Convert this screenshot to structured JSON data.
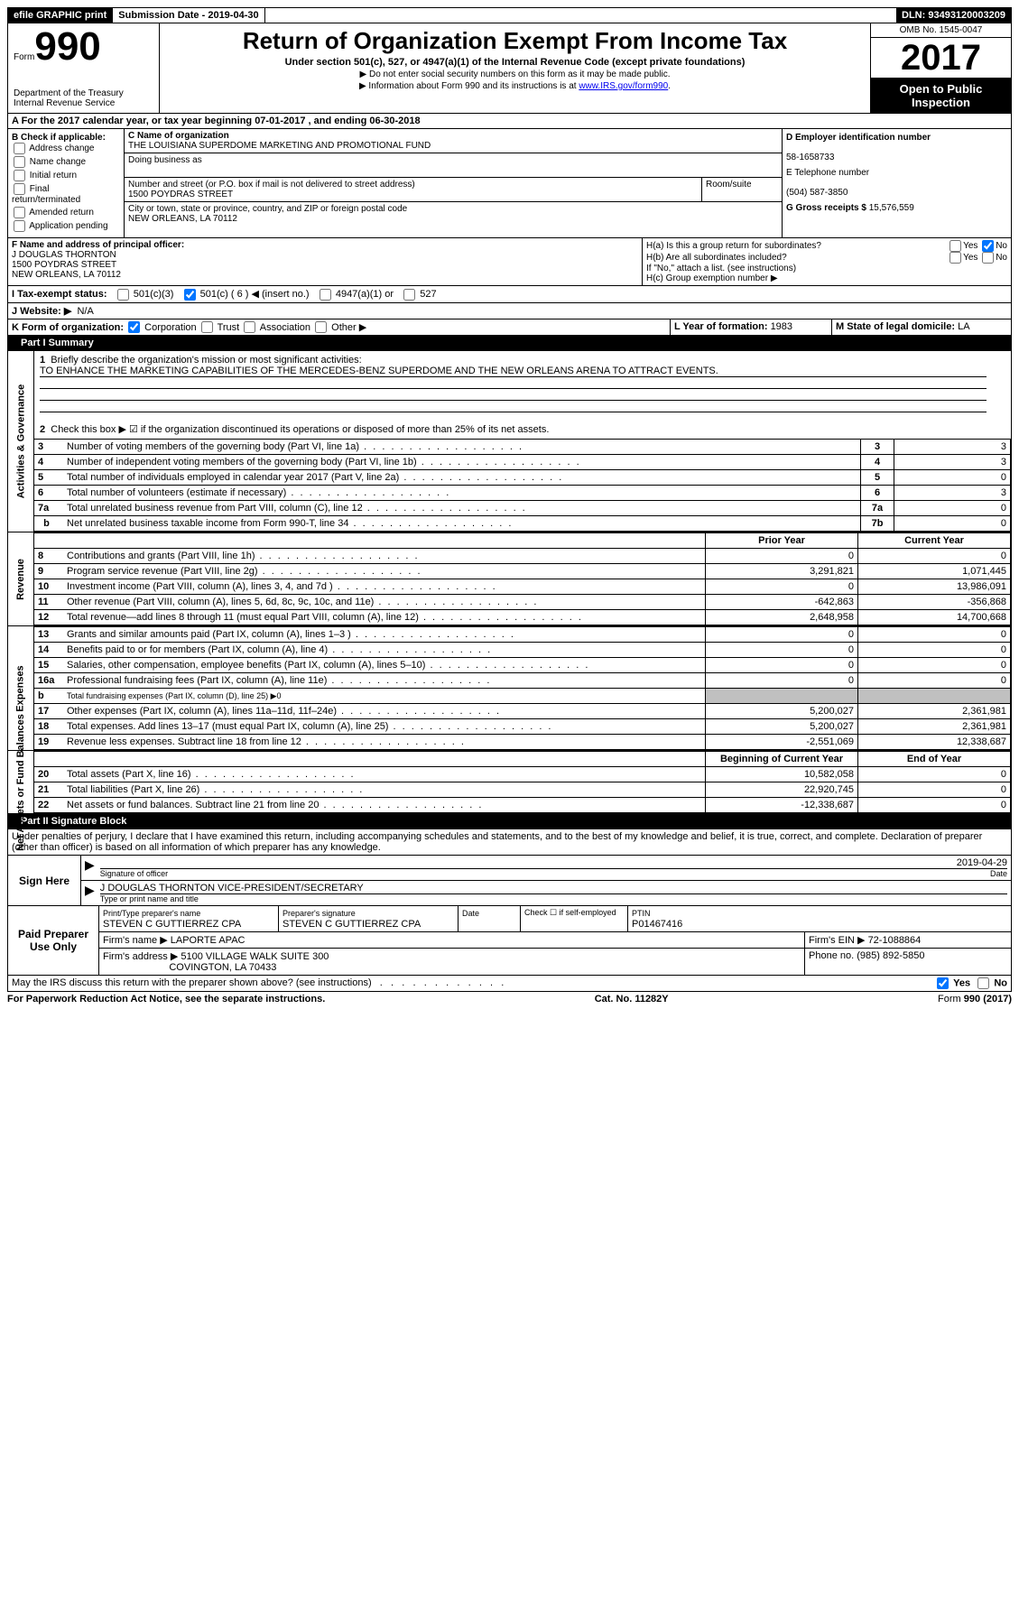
{
  "topbar": {
    "efile": "efile GRAPHIC print",
    "submission_label": "Submission Date - ",
    "submission_date": "2019-04-30",
    "dln_label": "DLN: ",
    "dln": "93493120003209"
  },
  "header": {
    "form_word": "Form",
    "form_num": "990",
    "dept1": "Department of the Treasury",
    "dept2": "Internal Revenue Service",
    "title": "Return of Organization Exempt From Income Tax",
    "subtitle": "Under section 501(c), 527, or 4947(a)(1) of the Internal Revenue Code (except private foundations)",
    "note1": "▶ Do not enter social security numbers on this form as it may be made public.",
    "note2_pre": "▶ Information about Form 990 and its instructions is at ",
    "note2_link": "www.IRS.gov/form990",
    "omb": "OMB No. 1545-0047",
    "year": "2017",
    "inspection": "Open to Public Inspection"
  },
  "a_line": "A   For the 2017 calendar year, or tax year beginning 07-01-2017   , and ending 06-30-2018",
  "b": {
    "heading": "B Check if applicable:",
    "opts": [
      "Address change",
      "Name change",
      "Initial return",
      "Final return/terminated",
      "Amended return",
      "Application pending"
    ]
  },
  "c": {
    "name_label": "C Name of organization",
    "name": "THE LOUISIANA SUPERDOME MARKETING AND PROMOTIONAL FUND",
    "dba_label": "Doing business as",
    "dba": "",
    "street_label": "Number and street (or P.O. box if mail is not delivered to street address)",
    "street": "1500 POYDRAS STREET",
    "room_label": "Room/suite",
    "city_label": "City or town, state or province, country, and ZIP or foreign postal code",
    "city": "NEW ORLEANS, LA   70112"
  },
  "d": {
    "ein_label": "D Employer identification number",
    "ein": "58-1658733",
    "tel_label": "E Telephone number",
    "tel": "(504) 587-3850",
    "gross_label": "G Gross receipts $ ",
    "gross": "15,576,559"
  },
  "f": {
    "label": "F  Name and address of principal officer:",
    "name": "J DOUGLAS THORNTON",
    "street": "1500 POYDRAS STREET",
    "city": "NEW ORLEANS, LA   70112"
  },
  "h": {
    "a_label": "H(a)  Is this a group return for subordinates?",
    "b_label": "H(b)  Are all subordinates included?",
    "b_note": "If \"No,\" attach a list. (see instructions)",
    "c_label": "H(c)  Group exemption number ▶",
    "yes": "Yes",
    "no": "No"
  },
  "i": {
    "label": "I   Tax-exempt status:",
    "o1": "501(c)(3)",
    "o2": "501(c) ( 6 ) ◀ (insert no.)",
    "o3": "4947(a)(1) or",
    "o4": "527"
  },
  "j": {
    "label": "J   Website: ▶",
    "val": "N/A"
  },
  "k": {
    "label": "K Form of organization:",
    "opts": [
      "Corporation",
      "Trust",
      "Association",
      "Other ▶"
    ]
  },
  "l": {
    "label": "L Year of formation: ",
    "val": "1983"
  },
  "m": {
    "label": "M State of legal domicile: ",
    "val": "LA"
  },
  "part1_header": "Part I     Summary",
  "part1": {
    "q1": "Briefly describe the organization's mission or most significant activities:",
    "q1_ans": "TO ENHANCE THE MARKETING CAPABILITIES OF THE MERCEDES-BENZ SUPERDOME AND THE NEW ORLEANS ARENA TO ATTRACT EVENTS.",
    "q2": "Check this box ▶ ☑ if the organization discontinued its operations or disposed of more than 25% of its net assets.",
    "lines_ag": [
      {
        "n": "3",
        "t": "Number of voting members of the governing body (Part VI, line 1a)",
        "v": "3"
      },
      {
        "n": "4",
        "t": "Number of independent voting members of the governing body (Part VI, line 1b)",
        "v": "3"
      },
      {
        "n": "5",
        "t": "Total number of individuals employed in calendar year 2017 (Part V, line 2a)",
        "v": "0"
      },
      {
        "n": "6",
        "t": "Total number of volunteers (estimate if necessary)",
        "v": "3"
      },
      {
        "n": "7a",
        "t": "Total unrelated business revenue from Part VIII, column (C), line 12",
        "v": "0"
      },
      {
        "n": "7b",
        "t": "Net unrelated business taxable income from Form 990-T, line 34",
        "sub": "b",
        "v": "0"
      }
    ],
    "year_hdr_prior": "Prior Year",
    "year_hdr_curr": "Current Year",
    "rev": [
      {
        "n": "8",
        "t": "Contributions and grants (Part VIII, line 1h)",
        "p": "0",
        "c": "0"
      },
      {
        "n": "9",
        "t": "Program service revenue (Part VIII, line 2g)",
        "p": "3,291,821",
        "c": "1,071,445"
      },
      {
        "n": "10",
        "t": "Investment income (Part VIII, column (A), lines 3, 4, and 7d )",
        "p": "0",
        "c": "13,986,091"
      },
      {
        "n": "11",
        "t": "Other revenue (Part VIII, column (A), lines 5, 6d, 8c, 9c, 10c, and 11e)",
        "p": "-642,863",
        "c": "-356,868"
      },
      {
        "n": "12",
        "t": "Total revenue—add lines 8 through 11 (must equal Part VIII, column (A), line 12)",
        "p": "2,648,958",
        "c": "14,700,668"
      }
    ],
    "exp": [
      {
        "n": "13",
        "t": "Grants and similar amounts paid (Part IX, column (A), lines 1–3 )",
        "p": "0",
        "c": "0"
      },
      {
        "n": "14",
        "t": "Benefits paid to or for members (Part IX, column (A), line 4)",
        "p": "0",
        "c": "0"
      },
      {
        "n": "15",
        "t": "Salaries, other compensation, employee benefits (Part IX, column (A), lines 5–10)",
        "p": "0",
        "c": "0"
      },
      {
        "n": "16a",
        "t": "Professional fundraising fees (Part IX, column (A), line 11e)",
        "p": "0",
        "c": "0"
      },
      {
        "n": "b",
        "t": "Total fundraising expenses (Part IX, column (D), line 25) ▶0",
        "p": "",
        "c": "",
        "grey": true,
        "sub": true
      },
      {
        "n": "17",
        "t": "Other expenses (Part IX, column (A), lines 11a–11d, 11f–24e)",
        "p": "5,200,027",
        "c": "2,361,981"
      },
      {
        "n": "18",
        "t": "Total expenses. Add lines 13–17 (must equal Part IX, column (A), line 25)",
        "p": "5,200,027",
        "c": "2,361,981"
      },
      {
        "n": "19",
        "t": "Revenue less expenses. Subtract line 18 from line 12",
        "p": "-2,551,069",
        "c": "12,338,687"
      }
    ],
    "bal_hdr_beg": "Beginning of Current Year",
    "bal_hdr_end": "End of Year",
    "bal": [
      {
        "n": "20",
        "t": "Total assets (Part X, line 16)",
        "p": "10,582,058",
        "c": "0"
      },
      {
        "n": "21",
        "t": "Total liabilities (Part X, line 26)",
        "p": "22,920,745",
        "c": "0"
      },
      {
        "n": "22",
        "t": "Net assets or fund balances. Subtract line 21 from line 20",
        "p": "-12,338,687",
        "c": "0"
      }
    ]
  },
  "vtabs": {
    "ag": "Activities & Governance",
    "rev": "Revenue",
    "exp": "Expenses",
    "bal": "Net Assets or Fund Balances"
  },
  "part2_header": "Part II    Signature Block",
  "part2_decl": "Under penalties of perjury, I declare that I have examined this return, including accompanying schedules and statements, and to the best of my knowledge and belief, it is true, correct, and complete. Declaration of preparer (other than officer) is based on all information of which preparer has any knowledge.",
  "sign": {
    "here": "Sign Here",
    "sig_label": "Signature of officer",
    "date_label": "Date",
    "date": "2019-04-29",
    "name": "J DOUGLAS THORNTON  VICE-PRESIDENT/SECRETARY",
    "name_label": "Type or print name and title"
  },
  "prep": {
    "label": "Paid Preparer Use Only",
    "pname_label": "Print/Type preparer's name",
    "pname": "STEVEN C GUTTIERREZ CPA",
    "psig_label": "Preparer's signature",
    "psig": "STEVEN C GUTTIERREZ CPA",
    "pdate_label": "Date",
    "self_label": "Check ☐ if self-employed",
    "ptin_label": "PTIN",
    "ptin": "P01467416",
    "firm_label": "Firm's name      ▶ ",
    "firm": "LAPORTE APAC",
    "ein_label": "Firm's EIN ▶ ",
    "ein": "72-1088864",
    "addr_label": "Firm's address ▶ ",
    "addr1": "5100 VILLAGE WALK SUITE 300",
    "addr2": "COVINGTON, LA   70433",
    "phone_label": "Phone no. ",
    "phone": "(985) 892-5850"
  },
  "irs_discuss": "May the IRS discuss this return with the preparer shown above? (see instructions)",
  "footer": {
    "left": "For Paperwork Reduction Act Notice, see the separate instructions.",
    "mid": "Cat. No. 11282Y",
    "right": "Form 990 (2017)"
  }
}
